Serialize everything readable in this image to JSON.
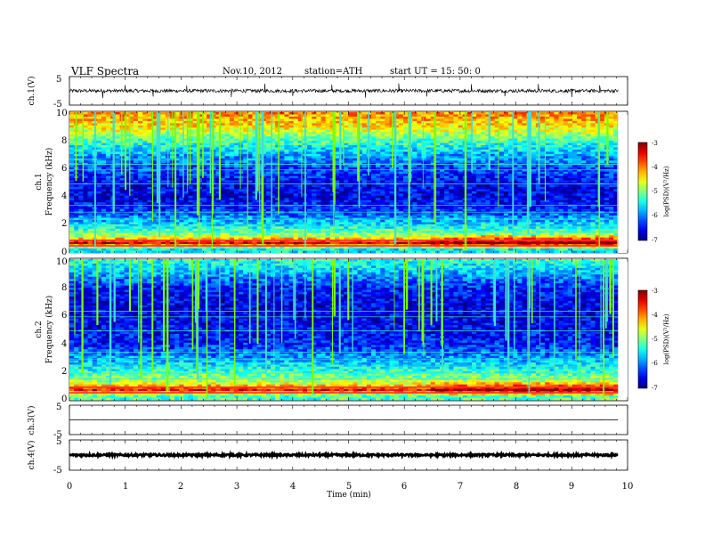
{
  "header": {
    "title": "VLF  Spectra",
    "date": "Nov.10, 2012",
    "station": "station=ATH",
    "start": "start  UT  =    15: 50: 0"
  },
  "chart_data": [
    {
      "type": "line",
      "name": "ch1",
      "ylabel": "ch.1(V)",
      "xlim": [
        0,
        10
      ],
      "ylim": [
        -5,
        5
      ],
      "yticks": [
        "5",
        "-5"
      ],
      "baseline": 0,
      "noise_amplitude": 0.6,
      "spikes": [
        {
          "t": 0.6,
          "v": -2.5
        },
        {
          "t": 1.0,
          "v": 2.0
        },
        {
          "t": 1.5,
          "v": -2.0
        },
        {
          "t": 2.1,
          "v": 1.8
        },
        {
          "t": 2.9,
          "v": -2.2
        },
        {
          "t": 3.5,
          "v": 2.5
        },
        {
          "t": 4.0,
          "v": -1.8
        },
        {
          "t": 4.7,
          "v": 2.2
        },
        {
          "t": 5.3,
          "v": -2.4
        },
        {
          "t": 5.9,
          "v": 2.6
        },
        {
          "t": 6.4,
          "v": -2.0
        },
        {
          "t": 7.2,
          "v": 2.3
        },
        {
          "t": 7.8,
          "v": -1.9
        },
        {
          "t": 8.4,
          "v": 2.4
        },
        {
          "t": 9.0,
          "v": -2.2
        },
        {
          "t": 9.5,
          "v": 1.9
        }
      ]
    },
    {
      "type": "heatmap",
      "name": "ch1-spectrogram",
      "label_channel": "ch.1",
      "ylabel": "Frequency  (kHz)",
      "xlim": [
        0,
        10
      ],
      "ylim": [
        0,
        10
      ],
      "yticks": [
        "0",
        "2",
        "4",
        "6",
        "8",
        "10"
      ],
      "data_end_min": 9.83,
      "change_min": 6.5,
      "colorbar_label": "log(PSD)(V²/Hz)",
      "colorbar_ticks": [
        "-3",
        "-4",
        "-5",
        "-6",
        "-7"
      ],
      "clim": [
        -7,
        -3
      ],
      "intensity_by_freq_khz": [
        {
          "f": 0.3,
          "v": -5.5
        },
        {
          "f": 0.7,
          "v": -3.4
        },
        {
          "f": 1.2,
          "v": -4.8
        },
        {
          "f": 2.0,
          "v": -5.6
        },
        {
          "f": 3.0,
          "v": -6.3
        },
        {
          "f": 4.0,
          "v": -6.6
        },
        {
          "f": 5.0,
          "v": -6.5
        },
        {
          "f": 6.0,
          "v": -6.2
        },
        {
          "f": 7.0,
          "v": -5.8
        },
        {
          "f": 8.0,
          "v": -5.2
        },
        {
          "f": 9.0,
          "v": -4.4
        },
        {
          "f": 10.0,
          "v": -4.0
        }
      ]
    },
    {
      "type": "heatmap",
      "name": "ch2-spectrogram",
      "label_channel": "ch.2",
      "ylabel": "Frequency  (kHz)",
      "xlim": [
        0,
        10
      ],
      "ylim": [
        0,
        10
      ],
      "yticks": [
        "0",
        "2",
        "4",
        "6",
        "8",
        "10"
      ],
      "data_end_min": 9.83,
      "change_min": 6.5,
      "colorbar_label": "log(PSD)(V²/Hz)",
      "colorbar_ticks": [
        "-3",
        "-4",
        "-5",
        "-6",
        "-7"
      ],
      "clim": [
        -7,
        -3
      ],
      "intensity_by_freq_khz": [
        {
          "f": 0.3,
          "v": -5.2
        },
        {
          "f": 0.7,
          "v": -3.5
        },
        {
          "f": 1.2,
          "v": -4.7
        },
        {
          "f": 2.0,
          "v": -5.3
        },
        {
          "f": 3.0,
          "v": -5.9
        },
        {
          "f": 4.0,
          "v": -6.4
        },
        {
          "f": 5.0,
          "v": -6.5
        },
        {
          "f": 6.0,
          "v": -6.6
        },
        {
          "f": 7.0,
          "v": -6.6
        },
        {
          "f": 8.0,
          "v": -6.4
        },
        {
          "f": 9.0,
          "v": -5.8
        },
        {
          "f": 10.0,
          "v": -5.3
        }
      ]
    },
    {
      "type": "line",
      "name": "ch3",
      "ylabel": "ch.3(V)",
      "xlim": [
        0,
        10
      ],
      "ylim": [
        -5,
        5
      ],
      "yticks": [
        "5",
        "-5"
      ],
      "baseline": 0,
      "noise_amplitude": 0.05,
      "spikes": []
    },
    {
      "type": "line",
      "name": "ch4",
      "ylabel": "ch.4(V)",
      "xlim": [
        0,
        10
      ],
      "ylim": [
        -5,
        5
      ],
      "yticks": [
        "5",
        "-5"
      ],
      "baseline": 0,
      "noise_amplitude": 0.35,
      "spikes": []
    }
  ],
  "xaxis": {
    "label": "Time  (min)",
    "ticks": [
      "0",
      "1",
      "2",
      "3",
      "4",
      "5",
      "6",
      "7",
      "8",
      "9",
      "10"
    ]
  }
}
